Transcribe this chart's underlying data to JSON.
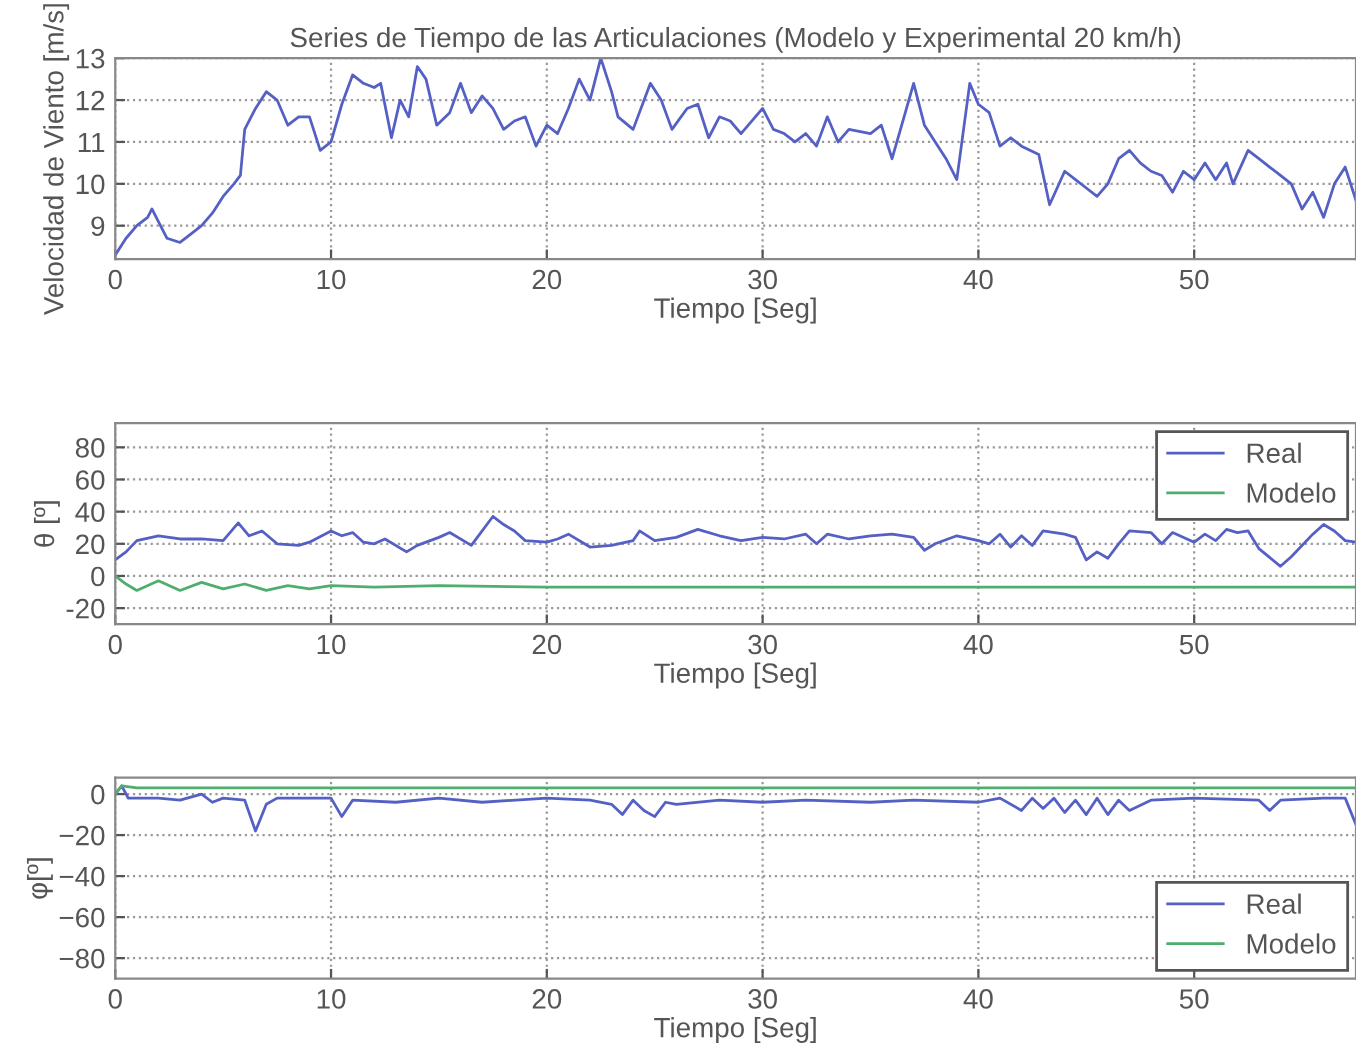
{
  "chart_data": [
    {
      "type": "line",
      "title": "Series de Tiempo de las Articulaciones (Modelo y Experimental 20 km/h)",
      "xlabel": "Tiempo [Seg]",
      "ylabel": "Velocidad de Viento [m/s]",
      "xlim": [
        0,
        57.5
      ],
      "ylim": [
        8.2,
        13
      ],
      "xticks": [
        0,
        10,
        20,
        30,
        40,
        50
      ],
      "yticks": [
        9,
        10,
        11,
        12,
        13
      ],
      "grid": true,
      "legend": false,
      "series": [
        {
          "color": "#5560c4",
          "x": [
            0,
            0.5,
            1,
            1.5,
            1.7,
            2,
            2.4,
            3,
            3.5,
            4,
            4.5,
            5,
            5.5,
            5.8,
            6,
            6.5,
            7,
            7.5,
            8,
            8.5,
            9,
            9.5,
            10,
            10.5,
            11,
            11.5,
            12,
            12.3,
            12.8,
            13.2,
            13.6,
            14,
            14.4,
            14.9,
            15.5,
            16,
            16.5,
            17,
            17.5,
            18,
            18.5,
            19,
            19.5,
            20,
            20.5,
            21,
            21.5,
            22,
            22.5,
            23,
            23.3,
            24,
            24.8,
            25.3,
            25.8,
            26.5,
            27,
            27.5,
            28,
            28.5,
            29,
            30,
            30.5,
            31,
            31.5,
            32,
            32.5,
            33,
            33.5,
            34,
            35,
            35.5,
            36,
            36.5,
            37,
            37.5,
            38,
            38.5,
            39,
            39.6,
            40,
            40.5,
            41,
            41.5,
            42,
            42.8,
            43.3,
            44,
            44.5,
            45,
            45.5,
            46,
            46.5,
            47,
            47.5,
            48,
            48.5,
            49,
            49.5,
            50,
            50.5,
            51,
            51.5,
            51.8,
            52.5,
            53,
            53.5,
            54,
            54.5,
            55,
            55.5,
            56,
            56.5,
            57,
            57.5
          ],
          "values": [
            8.3,
            8.7,
            9.0,
            9.2,
            9.4,
            9.1,
            8.7,
            8.6,
            8.8,
            9.0,
            9.3,
            9.7,
            10.0,
            10.2,
            11.3,
            11.8,
            12.2,
            12.0,
            11.4,
            11.6,
            11.6,
            10.8,
            11.0,
            11.9,
            12.6,
            12.4,
            12.3,
            12.4,
            11.1,
            12.0,
            11.6,
            12.8,
            12.5,
            11.4,
            11.7,
            12.4,
            11.7,
            12.1,
            11.8,
            11.3,
            11.5,
            11.6,
            10.9,
            11.4,
            11.2,
            11.8,
            12.5,
            12.0,
            13.0,
            12.2,
            11.6,
            11.3,
            12.4,
            12.0,
            11.3,
            11.8,
            11.9,
            11.1,
            11.6,
            11.5,
            11.2,
            11.8,
            11.3,
            11.2,
            11.0,
            11.2,
            10.9,
            11.6,
            11.0,
            11.3,
            11.2,
            11.4,
            10.6,
            11.5,
            12.4,
            11.4,
            11.0,
            10.6,
            10.1,
            12.4,
            11.9,
            11.7,
            10.9,
            11.1,
            10.9,
            10.7,
            9.5,
            10.3,
            10.1,
            9.9,
            9.7,
            10.0,
            10.6,
            10.8,
            10.5,
            10.3,
            10.2,
            9.8,
            10.3,
            10.1,
            10.5,
            10.1,
            10.5,
            10.0,
            10.8,
            10.6,
            10.4,
            10.2,
            10.0,
            9.4,
            9.8,
            9.2,
            10.0,
            10.4,
            9.6
          ]
        }
      ]
    },
    {
      "type": "line",
      "xlabel": "Tiempo [Seg]",
      "ylabel": "θ [º]",
      "xlim": [
        0,
        57.5
      ],
      "ylim": [
        -30,
        95
      ],
      "xticks": [
        0,
        10,
        20,
        30,
        40,
        50
      ],
      "yticks": [
        -20,
        0,
        20,
        40,
        60,
        80
      ],
      "grid": true,
      "legend": "top right",
      "series": [
        {
          "name": "Real",
          "color": "#5560c4",
          "x": [
            0,
            0.5,
            1,
            2,
            3,
            4,
            5,
            5.7,
            6.2,
            6.8,
            7.5,
            8.5,
            9,
            10,
            10.5,
            11,
            11.5,
            12,
            12.5,
            13.5,
            14,
            15,
            15.5,
            16.5,
            17.5,
            18,
            18.5,
            19,
            20,
            20.5,
            21,
            22,
            23,
            24,
            24.3,
            25,
            26,
            27,
            28,
            29,
            30,
            31,
            32,
            32.5,
            33,
            34,
            35,
            36,
            37,
            37.5,
            38,
            39,
            40,
            40.5,
            41,
            41.5,
            42,
            42.5,
            43,
            44,
            44.5,
            45,
            45.5,
            46,
            46.5,
            47,
            48,
            48.5,
            49,
            50,
            50.5,
            51,
            51.5,
            52,
            52.5,
            53,
            54,
            54.5,
            55.5,
            56,
            56.5,
            57,
            57.5
          ],
          "values": [
            10,
            15,
            22,
            25,
            23,
            23,
            22,
            33,
            25,
            28,
            20,
            19,
            21,
            28,
            25,
            27,
            21,
            20,
            23,
            15,
            19,
            24,
            27,
            19,
            37,
            32,
            28,
            22,
            21,
            23,
            26,
            18,
            19,
            22,
            28,
            22,
            24,
            29,
            25,
            22,
            24,
            23,
            26,
            20,
            26,
            23,
            25,
            26,
            24,
            16,
            20,
            25,
            22,
            20,
            26,
            18,
            25,
            19,
            28,
            26,
            24,
            10,
            15,
            11,
            20,
            28,
            27,
            20,
            27,
            21,
            26,
            22,
            29,
            27,
            28,
            17,
            6,
            12,
            26,
            32,
            28,
            22,
            21
          ]
        },
        {
          "name": "Modelo",
          "color": "#4fae6e",
          "x": [
            0,
            0.5,
            1,
            2,
            3,
            4,
            5,
            6,
            7,
            8,
            9,
            10,
            12,
            15,
            20,
            30,
            40,
            50,
            57.5
          ],
          "values": [
            0,
            -5,
            -9,
            -3,
            -9,
            -4,
            -8,
            -5,
            -9,
            -6,
            -8,
            -6,
            -7,
            -6,
            -7,
            -7,
            -7,
            -7,
            -7
          ]
        }
      ]
    },
    {
      "type": "line",
      "xlabel": "Tiempo [Seg]",
      "ylabel": "φ[º]",
      "xlim": [
        0,
        57.5
      ],
      "ylim": [
        -90,
        8
      ],
      "xticks": [
        0,
        10,
        20,
        30,
        40,
        50
      ],
      "yticks": [
        {
          "value": -80,
          "label": "−80"
        },
        {
          "value": -60,
          "label": "−60"
        },
        {
          "value": -40,
          "label": "−40"
        },
        {
          "value": -20,
          "label": "−20"
        },
        0
      ],
      "grid": true,
      "legend": "bottom right",
      "series": [
        {
          "name": "Real",
          "color": "#5560c4",
          "x": [
            0,
            0.3,
            0.6,
            2,
            3,
            4,
            4.5,
            5,
            6,
            6.5,
            7,
            7.5,
            9,
            10,
            10.5,
            11,
            13,
            15,
            17,
            20,
            22,
            23,
            23.5,
            24,
            24.5,
            25,
            25.5,
            26,
            28,
            30,
            32,
            35,
            37,
            40,
            41,
            42,
            42.5,
            43,
            43.5,
            44,
            44.5,
            45,
            45.5,
            46,
            46.5,
            47,
            48,
            50,
            53,
            53.5,
            54,
            56,
            57,
            57.5
          ],
          "values": [
            0,
            4,
            -2,
            -2,
            -3,
            0,
            -4,
            -2,
            -3,
            -18,
            -5,
            -2,
            -2,
            -2,
            -11,
            -3,
            -4,
            -2,
            -4,
            -2,
            -3,
            -5,
            -10,
            -3,
            -8,
            -11,
            -4,
            -5,
            -3,
            -4,
            -3,
            -4,
            -3,
            -4,
            -2,
            -8,
            -2,
            -7,
            -2,
            -9,
            -3,
            -10,
            -2,
            -10,
            -3,
            -8,
            -3,
            -2,
            -3,
            -8,
            -3,
            -2,
            -2,
            -15
          ]
        },
        {
          "name": "Modelo",
          "color": "#4fae6e",
          "x": [
            0,
            0.3,
            1,
            3,
            57.5
          ],
          "values": [
            0,
            4,
            3,
            3,
            3
          ]
        }
      ]
    }
  ]
}
